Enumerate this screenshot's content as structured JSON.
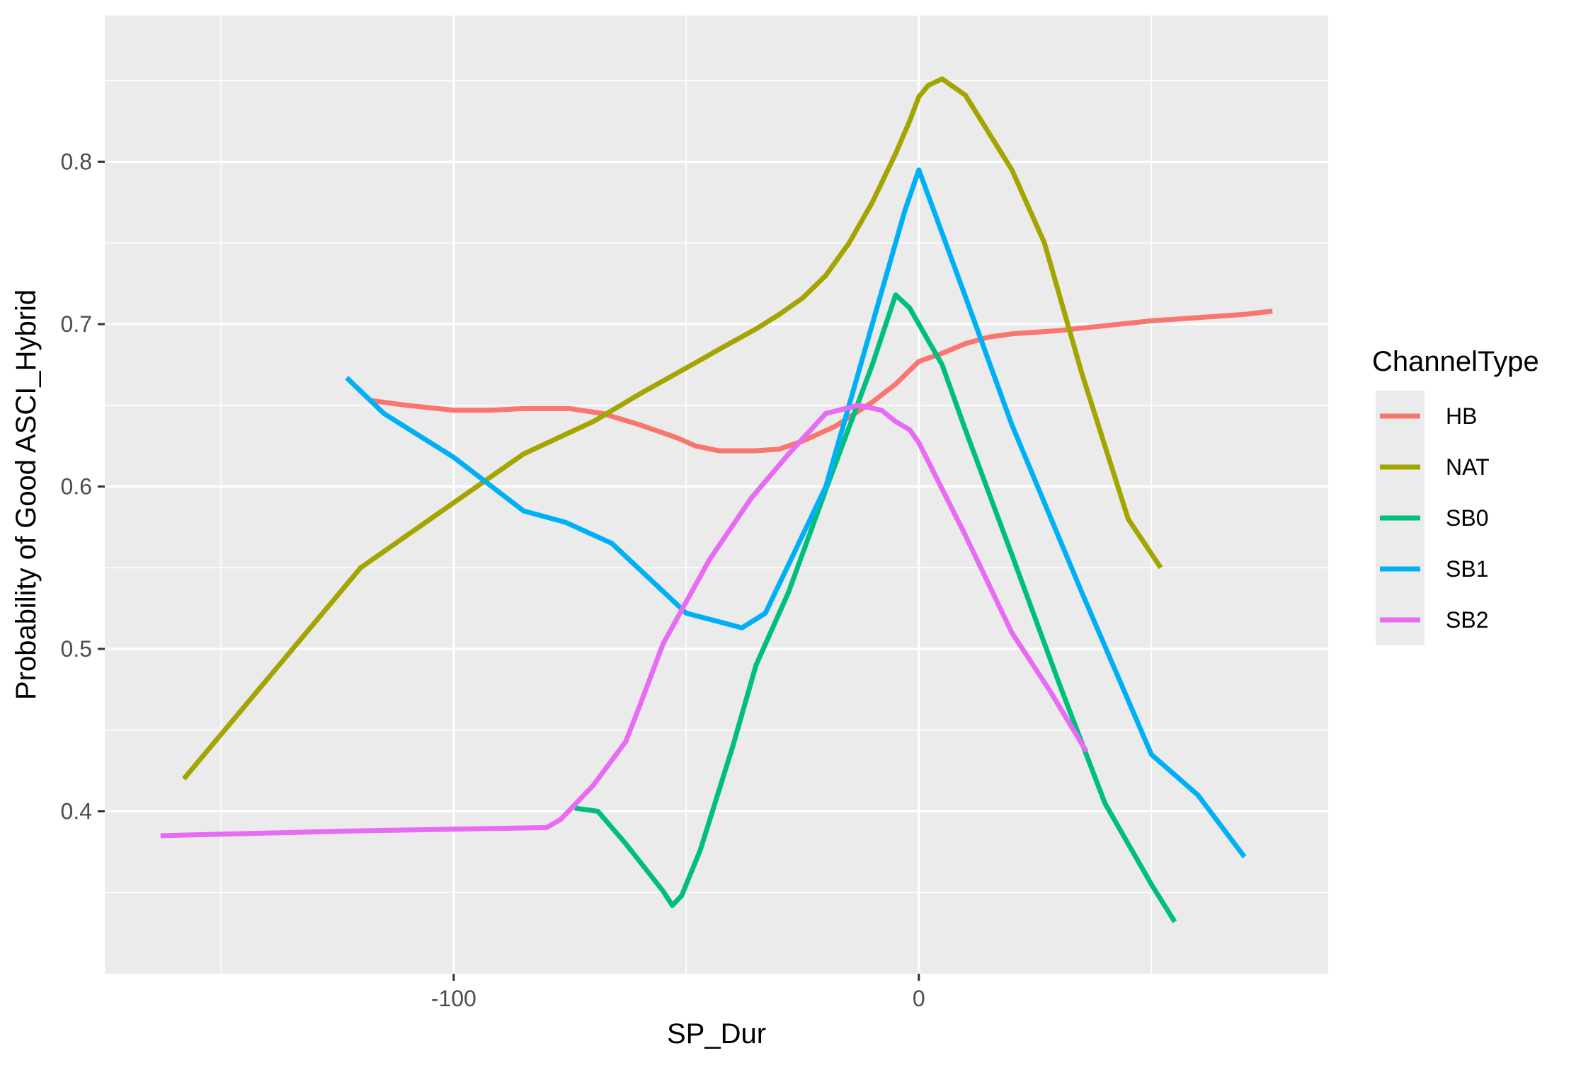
{
  "chart_data": {
    "type": "line",
    "title": "",
    "xlabel": "SP_Dur",
    "ylabel": "Probability of Good ASCI_Hybrid",
    "xlim": [
      -175,
      88
    ],
    "ylim": [
      0.3,
      0.89
    ],
    "x_ticks": [
      -100,
      0
    ],
    "x_tick_labels": [
      "-100",
      "0"
    ],
    "y_ticks": [
      0.4,
      0.5,
      0.6,
      0.7,
      0.8
    ],
    "y_tick_labels": [
      "0.4",
      "0.5",
      "0.6",
      "0.7",
      "0.8"
    ],
    "grid": true,
    "legend": {
      "title": "ChannelType",
      "position": "right"
    },
    "panel_color": "#EBEBEB",
    "series": [
      {
        "name": "HB",
        "color": "#F8766D",
        "points": [
          [
            -118,
            0.653
          ],
          [
            -110,
            0.65
          ],
          [
            -100,
            0.647
          ],
          [
            -92,
            0.647
          ],
          [
            -85,
            0.648
          ],
          [
            -75,
            0.648
          ],
          [
            -68,
            0.645
          ],
          [
            -60,
            0.638
          ],
          [
            -52,
            0.63
          ],
          [
            -48,
            0.625
          ],
          [
            -43,
            0.622
          ],
          [
            -35,
            0.622
          ],
          [
            -30,
            0.623
          ],
          [
            -25,
            0.628
          ],
          [
            -18,
            0.637
          ],
          [
            -10,
            0.652
          ],
          [
            -5,
            0.663
          ],
          [
            0,
            0.677
          ],
          [
            5,
            0.682
          ],
          [
            10,
            0.688
          ],
          [
            15,
            0.692
          ],
          [
            20,
            0.694
          ],
          [
            30,
            0.696
          ],
          [
            40,
            0.699
          ],
          [
            50,
            0.702
          ],
          [
            60,
            0.704
          ],
          [
            70,
            0.706
          ],
          [
            76,
            0.708
          ]
        ]
      },
      {
        "name": "NAT",
        "color": "#A3A500",
        "points": [
          [
            -158,
            0.42
          ],
          [
            -120,
            0.55
          ],
          [
            -85,
            0.62
          ],
          [
            -70,
            0.64
          ],
          [
            -60,
            0.657
          ],
          [
            -50,
            0.673
          ],
          [
            -42,
            0.686
          ],
          [
            -35,
            0.697
          ],
          [
            -30,
            0.706
          ],
          [
            -25,
            0.716
          ],
          [
            -20,
            0.73
          ],
          [
            -15,
            0.75
          ],
          [
            -10,
            0.775
          ],
          [
            -5,
            0.805
          ],
          [
            -2,
            0.825
          ],
          [
            0,
            0.84
          ],
          [
            2,
            0.847
          ],
          [
            5,
            0.851
          ],
          [
            10,
            0.841
          ],
          [
            20,
            0.795
          ],
          [
            27,
            0.75
          ],
          [
            35,
            0.67
          ],
          [
            45,
            0.58
          ],
          [
            52,
            0.55
          ]
        ]
      },
      {
        "name": "SB0",
        "color": "#00BF7D",
        "points": [
          [
            -74,
            0.402
          ],
          [
            -69,
            0.4
          ],
          [
            -63,
            0.38
          ],
          [
            -55,
            0.351
          ],
          [
            -53,
            0.342
          ],
          [
            -51,
            0.348
          ],
          [
            -47,
            0.376
          ],
          [
            -40,
            0.44
          ],
          [
            -35,
            0.49
          ],
          [
            -28,
            0.535
          ],
          [
            -20,
            0.598
          ],
          [
            -10,
            0.675
          ],
          [
            -5,
            0.718
          ],
          [
            -2,
            0.71
          ],
          [
            0,
            0.7
          ],
          [
            5,
            0.675
          ],
          [
            10,
            0.635
          ],
          [
            20,
            0.558
          ],
          [
            30,
            0.48
          ],
          [
            40,
            0.405
          ],
          [
            50,
            0.355
          ],
          [
            55,
            0.332
          ]
        ]
      },
      {
        "name": "SB1",
        "color": "#00B0F6",
        "points": [
          [
            -123,
            0.667
          ],
          [
            -115,
            0.645
          ],
          [
            -100,
            0.618
          ],
          [
            -85,
            0.585
          ],
          [
            -76,
            0.578
          ],
          [
            -66,
            0.565
          ],
          [
            -50,
            0.522
          ],
          [
            -38,
            0.513
          ],
          [
            -33,
            0.522
          ],
          [
            -20,
            0.6
          ],
          [
            -10,
            0.7
          ],
          [
            -3,
            0.77
          ],
          [
            0,
            0.795
          ],
          [
            10,
            0.717
          ],
          [
            20,
            0.638
          ],
          [
            35,
            0.535
          ],
          [
            50,
            0.435
          ],
          [
            60,
            0.41
          ],
          [
            70,
            0.372
          ]
        ]
      },
      {
        "name": "SB2",
        "color": "#E76BF3",
        "points": [
          [
            -163,
            0.385
          ],
          [
            -120,
            0.388
          ],
          [
            -80,
            0.39
          ],
          [
            -77,
            0.395
          ],
          [
            -70,
            0.416
          ],
          [
            -63,
            0.443
          ],
          [
            -60,
            0.465
          ],
          [
            -55,
            0.503
          ],
          [
            -45,
            0.555
          ],
          [
            -36,
            0.593
          ],
          [
            -28,
            0.62
          ],
          [
            -20,
            0.645
          ],
          [
            -13,
            0.65
          ],
          [
            -8,
            0.647
          ],
          [
            -5,
            0.64
          ],
          [
            -2,
            0.635
          ],
          [
            0,
            0.627
          ],
          [
            10,
            0.57
          ],
          [
            20,
            0.51
          ],
          [
            28,
            0.475
          ],
          [
            36,
            0.437
          ]
        ]
      }
    ]
  }
}
